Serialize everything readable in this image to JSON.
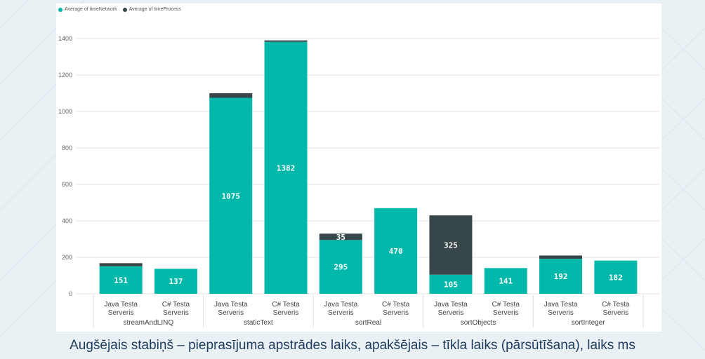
{
  "legend": [
    {
      "label": "Average of timeNetwork",
      "color": "#01b8aa"
    },
    {
      "label": "Average of timeProcess",
      "color": "#374649"
    }
  ],
  "caption": "Augšējais stabiņš – pieprasījuma apstrādes laiks, apakšējais – tīkla laiks (pārsūtīšana), laiks ms",
  "chart_data": {
    "type": "bar",
    "stacked": true,
    "ylim": [
      0,
      1400
    ],
    "yticks": [
      0,
      200,
      400,
      600,
      800,
      1000,
      1200,
      1400
    ],
    "grid": true,
    "legend_position": "top-left",
    "groups": [
      "streamAndLINQ",
      "staticText",
      "sortReal",
      "sortObjects",
      "sortInteger"
    ],
    "categories": [
      "Java Testa Serveris",
      "C# Testa Serveris",
      "Java Testa Serveris",
      "C# Testa Serveris",
      "Java Testa Serveris",
      "C# Testa Serveris",
      "Java Testa Serveris",
      "C# Testa Serveris",
      "Java Testa Serveris",
      "C# Testa Serveris"
    ],
    "category_lines": [
      [
        "Java Testa",
        "Serveris"
      ],
      [
        "C# Testa",
        "Serveris"
      ],
      [
        "Java Testa",
        "Serveris"
      ],
      [
        "C# Testa",
        "Serveris"
      ],
      [
        "Java Testa",
        "Serveris"
      ],
      [
        "C# Testa",
        "Serveris"
      ],
      [
        "Java Testa",
        "Serveris"
      ],
      [
        "C# Testa",
        "Serveris"
      ],
      [
        "Java Testa",
        "Serveris"
      ],
      [
        "C# Testa",
        "Serveris"
      ]
    ],
    "series": [
      {
        "name": "Average of timeNetwork",
        "color": "#01b8aa",
        "values": [
          151,
          137,
          1075,
          1382,
          295,
          470,
          105,
          141,
          192,
          182
        ],
        "labels": [
          "151",
          "137",
          "1075",
          "1382",
          "295",
          "470",
          "105",
          "141",
          "192",
          "182"
        ]
      },
      {
        "name": "Average of timeProcess",
        "color": "#374649",
        "values": [
          17,
          0,
          25,
          8,
          35,
          0,
          325,
          0,
          18,
          0
        ],
        "labels": [
          "",
          "",
          "",
          "",
          "35",
          "",
          "325",
          "",
          "",
          ""
        ]
      }
    ]
  }
}
